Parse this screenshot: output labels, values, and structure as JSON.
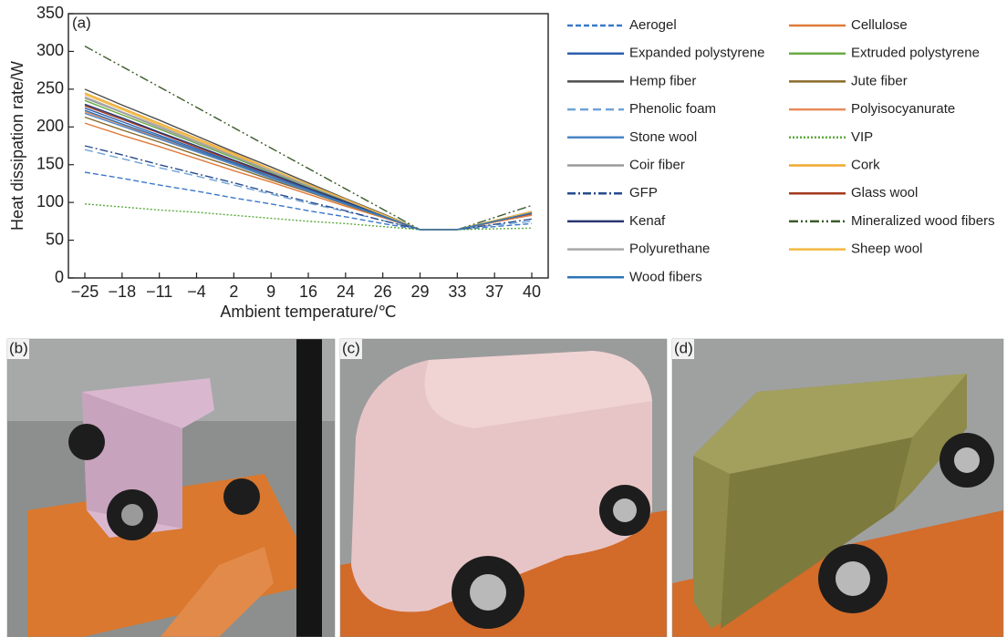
{
  "chart_data": {
    "type": "line",
    "panel_label": "(a)",
    "xlabel": "Ambient temperature/℃",
    "ylabel": "Heat dissipation rate/W",
    "categories": [
      "−25",
      "−18",
      "−11",
      "−4",
      "2",
      "9",
      "16",
      "24",
      "26",
      "29",
      "33",
      "37",
      "40"
    ],
    "ylim": [
      0,
      350
    ],
    "yticks": [
      0,
      50,
      100,
      150,
      200,
      250,
      300,
      350
    ],
    "series": [
      {
        "name": "Aerogel",
        "color": "#3a78c9",
        "dash": "dashed",
        "values": [
          140,
          132,
          123,
          115,
          106,
          98,
          89,
          81,
          72,
          64,
          64,
          68,
          72
        ]
      },
      {
        "name": "Cellulose",
        "color": "#e07b39",
        "dash": "solid",
        "values": [
          205,
          189,
          174,
          158,
          142,
          127,
          111,
          95,
          80,
          64,
          64,
          74,
          83
        ]
      },
      {
        "name": "Expanded polystyrene",
        "color": "#2d5fae",
        "dash": "solid",
        "values": [
          225,
          207,
          189,
          171,
          153,
          136,
          118,
          100,
          82,
          64,
          64,
          75,
          85
        ]
      },
      {
        "name": "Extruded polystyrene",
        "color": "#6aab46",
        "dash": "solid",
        "values": [
          235,
          216,
          197,
          178,
          159,
          140,
          121,
          102,
          83,
          64,
          64,
          76,
          87
        ]
      },
      {
        "name": "Hemp fiber",
        "color": "#4d4d4d",
        "dash": "solid",
        "values": [
          250,
          229,
          209,
          188,
          167,
          147,
          126,
          105,
          85,
          64,
          64,
          76,
          88
        ]
      },
      {
        "name": "Jute fiber",
        "color": "#8a6a2a",
        "dash": "solid",
        "values": [
          213,
          196,
          180,
          163,
          147,
          130,
          114,
          97,
          81,
          64,
          64,
          74,
          84
        ]
      },
      {
        "name": "Phenolic foam",
        "color": "#6fa3d8",
        "dash": "longdash",
        "values": [
          170,
          158,
          146,
          135,
          123,
          111,
          99,
          88,
          76,
          64,
          64,
          70,
          75
        ]
      },
      {
        "name": "Polyisocyanurate",
        "color": "#e88a5a",
        "dash": "solid",
        "values": [
          220,
          203,
          185,
          168,
          151,
          133,
          116,
          99,
          81,
          64,
          64,
          74,
          84
        ]
      },
      {
        "name": "Stone wool",
        "color": "#4a86c8",
        "dash": "solid",
        "values": [
          218,
          201,
          184,
          167,
          150,
          132,
          115,
          98,
          81,
          64,
          64,
          75,
          86
        ]
      },
      {
        "name": "VIP",
        "color": "#5aaa3c",
        "dash": "dotted",
        "values": [
          98,
          94,
          90,
          87,
          83,
          79,
          75,
          72,
          68,
          64,
          64,
          65,
          66
        ]
      },
      {
        "name": "Coir fiber",
        "color": "#9a9a9a",
        "dash": "solid",
        "values": [
          238,
          219,
          199,
          180,
          161,
          141,
          122,
          103,
          83,
          64,
          64,
          75,
          85
        ]
      },
      {
        "name": "Cork",
        "color": "#f0a830",
        "dash": "solid",
        "values": [
          245,
          225,
          205,
          185,
          165,
          144,
          124,
          104,
          84,
          64,
          64,
          76,
          87
        ]
      },
      {
        "name": "GFP",
        "color": "#274b8c",
        "dash": "dashdot",
        "values": [
          175,
          163,
          150,
          138,
          126,
          113,
          101,
          89,
          76,
          64,
          64,
          71,
          78
        ]
      },
      {
        "name": "Glass wool",
        "color": "#a33a1f",
        "dash": "solid",
        "values": [
          228,
          210,
          192,
          173,
          155,
          137,
          119,
          100,
          82,
          64,
          64,
          75,
          85
        ]
      },
      {
        "name": "Kenaf",
        "color": "#2a3570",
        "dash": "solid",
        "values": [
          230,
          212,
          193,
          175,
          156,
          138,
          119,
          101,
          82,
          64,
          64,
          75,
          86
        ]
      },
      {
        "name": "Mineralized wood fibers",
        "color": "#3a5a2a",
        "dash": "dashdotdot",
        "values": [
          307,
          280,
          253,
          226,
          199,
          172,
          145,
          118,
          91,
          64,
          64,
          80,
          96
        ]
      },
      {
        "name": "Polyurethane",
        "color": "#a8a8a8",
        "dash": "solid",
        "values": [
          240,
          220,
          201,
          181,
          162,
          142,
          123,
          103,
          84,
          64,
          64,
          75,
          86
        ]
      },
      {
        "name": "Sheep wool",
        "color": "#f2b840",
        "dash": "solid",
        "values": [
          243,
          223,
          203,
          183,
          163,
          144,
          124,
          104,
          84,
          64,
          64,
          76,
          88
        ]
      },
      {
        "name": "Wood fibers",
        "color": "#2e74b5",
        "dash": "solid",
        "values": [
          222,
          204,
          187,
          169,
          152,
          134,
          117,
          99,
          82,
          64,
          64,
          75,
          86
        ]
      }
    ]
  },
  "photos": [
    {
      "label": "(b)"
    },
    {
      "label": "(c)"
    },
    {
      "label": "(d)"
    }
  ]
}
